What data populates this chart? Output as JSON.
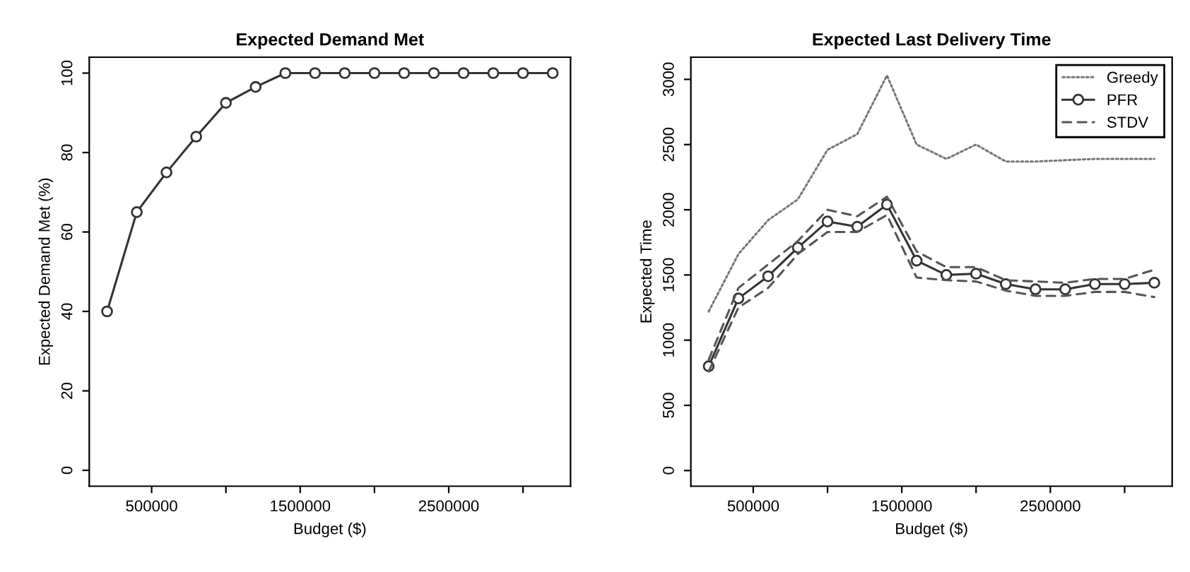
{
  "chart_data": [
    {
      "type": "line",
      "title": "Expected Demand Met",
      "xlabel": "Budget ($)",
      "ylabel": "Expected Demand Met (%)",
      "x": [
        200000,
        400000,
        600000,
        800000,
        1000000,
        1200000,
        1400000,
        1600000,
        1800000,
        2000000,
        2200000,
        2400000,
        2600000,
        2800000,
        3000000,
        3200000
      ],
      "series": [
        {
          "color": "#333333",
          "marker": "circle",
          "line_style": "solid",
          "values": [
            40,
            65,
            75,
            84,
            92.5,
            96.5,
            100,
            100,
            100,
            100,
            100,
            100,
            100,
            100,
            100,
            100
          ]
        }
      ],
      "xlim": [
        80000,
        3320000
      ],
      "xticks": [
        500000,
        {
          "value": 1000000,
          "label": null
        },
        1500000,
        {
          "value": 2000000,
          "label": null
        },
        2500000,
        {
          "value": 3000000,
          "label": null
        }
      ],
      "ylim": [
        -4,
        104
      ],
      "yticks": [
        0,
        20,
        40,
        60,
        80,
        100
      ],
      "grid": false,
      "legend": false
    },
    {
      "type": "line",
      "title": "Expected Last Delivery Time",
      "xlabel": "Budget ($)",
      "ylabel": "Expected Time",
      "x": [
        200000,
        400000,
        600000,
        800000,
        1000000,
        1200000,
        1400000,
        1600000,
        1800000,
        2000000,
        2200000,
        2400000,
        2600000,
        2800000,
        3000000,
        3200000
      ],
      "series": [
        {
          "name": "Greedy",
          "color": "#777777",
          "marker": "none",
          "line_style": "dotted",
          "values": [
            1220,
            1660,
            1920,
            2080,
            2460,
            2580,
            3030,
            2500,
            2390,
            2500,
            2370,
            2370,
            2380,
            2390,
            2390,
            2390
          ]
        },
        {
          "name": "PFR",
          "color": "#333333",
          "marker": "circle",
          "line_style": "solid",
          "values": [
            800,
            1320,
            1490,
            1710,
            1910,
            1870,
            2040,
            1610,
            1500,
            1510,
            1430,
            1390,
            1390,
            1430,
            1430,
            1440
          ]
        },
        {
          "name": "STDV",
          "color": "#555555",
          "marker": "none",
          "line_style": "dashed",
          "values": [
            850,
            1400,
            1580,
            1760,
            2000,
            1950,
            2100,
            1680,
            1560,
            1560,
            1460,
            1450,
            1440,
            1470,
            1470,
            1540
          ]
        },
        {
          "color": "#555555",
          "marker": "none",
          "line_style": "dashed",
          "values": [
            760,
            1250,
            1400,
            1660,
            1830,
            1830,
            1960,
            1480,
            1460,
            1450,
            1380,
            1340,
            1340,
            1370,
            1370,
            1330
          ]
        }
      ],
      "xlim": [
        80000,
        3320000
      ],
      "xticks": [
        500000,
        {
          "value": 1000000,
          "label": null
        },
        1500000,
        {
          "value": 2000000,
          "label": null
        },
        2500000,
        {
          "value": 3000000,
          "label": null
        }
      ],
      "ylim": [
        -120,
        3170
      ],
      "yticks": [
        0,
        500,
        1000,
        1500,
        2000,
        2500,
        3000
      ],
      "grid": false,
      "legend": "top right"
    }
  ]
}
